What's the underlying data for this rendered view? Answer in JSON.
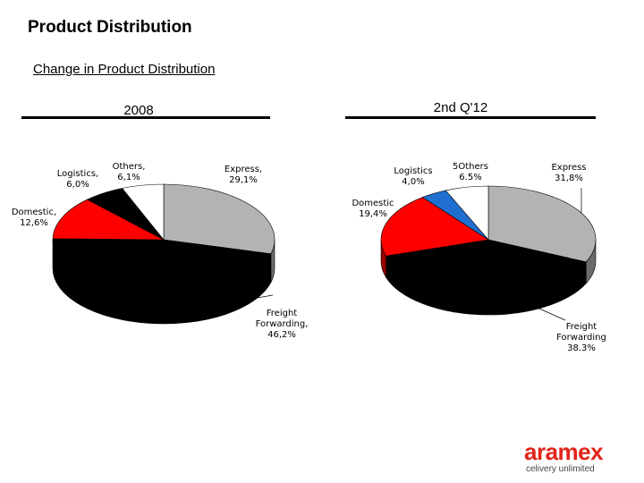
{
  "page": {
    "title": "Product Distribution",
    "subtitle": "Change in Product Distribution"
  },
  "brand": {
    "logo_text": "aramex",
    "tagline": "celivery unlimited",
    "color": "#e2231a"
  },
  "chart_data": [
    {
      "type": "pie",
      "title": "2008",
      "slices": [
        {
          "label_lines": [
            "Express,",
            "29,1%"
          ],
          "value": 29.1,
          "color": "#b3b3b3"
        },
        {
          "label_lines": [
            "Freight",
            "Forwarding,",
            "46,2%"
          ],
          "value": 46.2,
          "color": "#000000"
        },
        {
          "label_lines": [
            "Domestic,",
            "12,6%"
          ],
          "value": 12.6,
          "color": "#ff0000"
        },
        {
          "label_lines": [
            "Logistics,",
            "6,0%"
          ],
          "value": 6.0,
          "color": "#000000"
        },
        {
          "label_lines": [
            "Others,",
            "6,1%"
          ],
          "value": 6.1,
          "color": "#ffffff"
        }
      ]
    },
    {
      "type": "pie",
      "title": "2nd Q'12",
      "slices": [
        {
          "label_lines": [
            "Express",
            "31,8%"
          ],
          "value": 31.8,
          "color": "#b3b3b3"
        },
        {
          "label_lines": [
            "Freight",
            "Forwarding",
            "38.3%"
          ],
          "value": 38.3,
          "color": "#000000"
        },
        {
          "label_lines": [
            "Domestic",
            "19,4%"
          ],
          "value": 19.4,
          "color": "#ff0000"
        },
        {
          "label_lines": [
            "Logistics",
            "4,0%"
          ],
          "value": 4.0,
          "color": "#1f6fd1"
        },
        {
          "label_lines": [
            "5Others",
            "6.5%"
          ],
          "value": 6.5,
          "color": "#ffffff"
        }
      ]
    }
  ]
}
